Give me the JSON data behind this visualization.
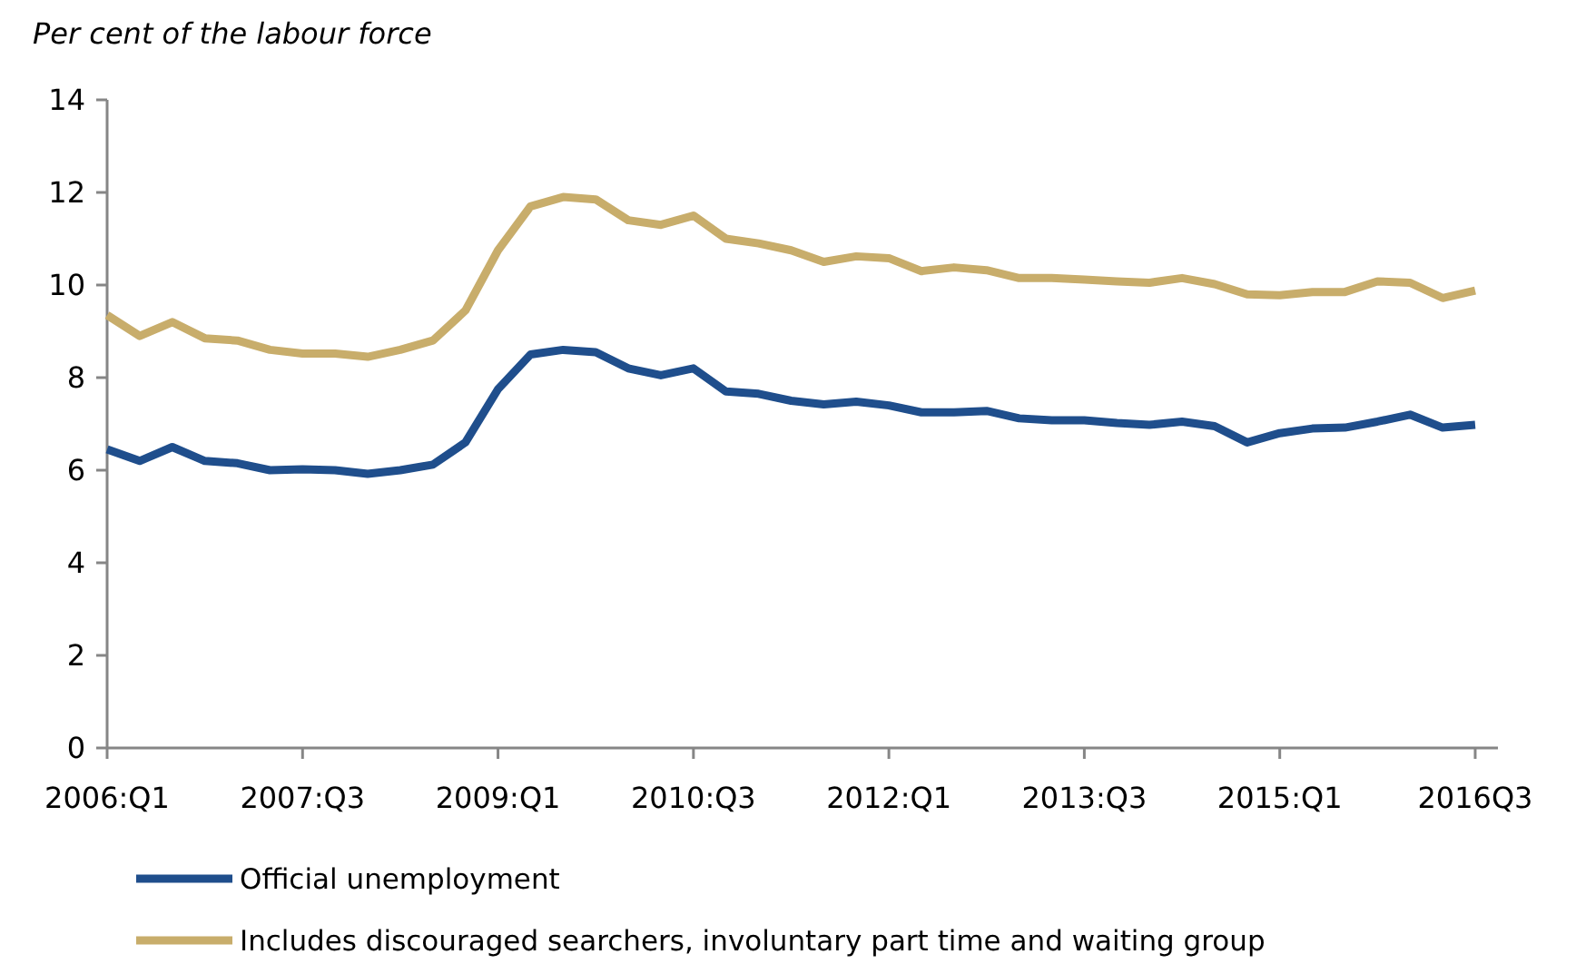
{
  "chart_data": {
    "type": "line",
    "ylabel": "Per cent of the labour force",
    "categories": [
      "2006:Q1",
      null,
      null,
      null,
      null,
      null,
      "2007:Q3",
      null,
      null,
      null,
      null,
      null,
      "2009:Q1",
      null,
      null,
      null,
      null,
      null,
      "2010:Q3",
      null,
      null,
      null,
      null,
      null,
      "2012:Q1",
      null,
      null,
      null,
      null,
      null,
      "2013:Q3",
      null,
      null,
      null,
      null,
      null,
      "2015:Q1",
      null,
      null,
      null,
      null,
      null,
      "2016Q3"
    ],
    "series": [
      {
        "name": "Official unemployment",
        "color": "#1f4e8c",
        "values": [
          6.45,
          6.2,
          6.5,
          6.2,
          6.15,
          6.0,
          6.02,
          6.0,
          5.92,
          6.0,
          6.12,
          6.6,
          7.75,
          8.5,
          8.6,
          8.55,
          8.2,
          8.05,
          8.2,
          7.7,
          7.65,
          7.5,
          7.42,
          7.48,
          7.4,
          7.25,
          7.25,
          7.28,
          7.12,
          7.08,
          7.08,
          7.02,
          6.98,
          7.05,
          6.95,
          6.6,
          6.8,
          6.9,
          6.92,
          7.05,
          7.2,
          6.92,
          6.98
        ]
      },
      {
        "name": "Includes discouraged searchers, involuntary part time and waiting group",
        "color": "#c8ad6b",
        "values": [
          9.35,
          8.9,
          9.2,
          8.85,
          8.8,
          8.6,
          8.52,
          8.52,
          8.45,
          8.6,
          8.8,
          9.45,
          10.75,
          11.7,
          11.9,
          11.85,
          11.4,
          11.3,
          11.5,
          11.0,
          10.9,
          10.75,
          10.5,
          10.62,
          10.58,
          10.3,
          10.38,
          10.32,
          10.15,
          10.15,
          10.12,
          10.08,
          10.05,
          10.15,
          10.02,
          9.8,
          9.78,
          9.85,
          9.85,
          10.08,
          10.05,
          9.72,
          9.88
        ]
      }
    ],
    "ylim": [
      0,
      14
    ],
    "yticks": [
      0,
      2,
      4,
      6,
      8,
      10,
      12,
      14
    ],
    "grid": false,
    "legend": "bottom",
    "line_style": "solid",
    "marker": "none"
  }
}
